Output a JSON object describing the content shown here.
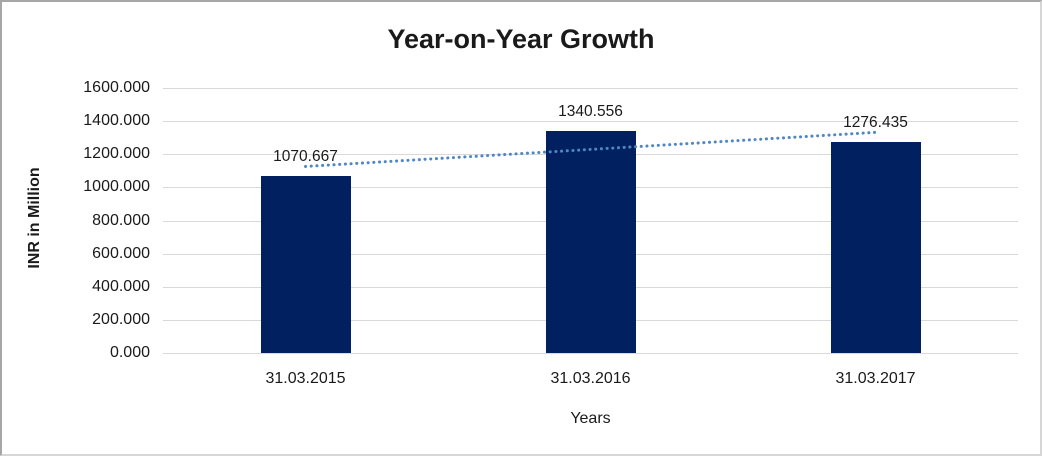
{
  "chart_data": {
    "type": "bar",
    "title": "Year-on-Year Growth",
    "xlabel": "Years",
    "ylabel": "INR in Million",
    "categories": [
      "31.03.2015",
      "31.03.2016",
      "31.03.2017"
    ],
    "values": [
      1070.667,
      1340.556,
      1276.435
    ],
    "value_labels": [
      "1070.667",
      "1340.556",
      "1276.435"
    ],
    "series_name": "",
    "ylim": [
      0,
      1600
    ],
    "ytick_step": 200,
    "ytick_labels": [
      "0.000",
      "200.000",
      "400.000",
      "600.000",
      "800.000",
      "1000.000",
      "1200.000",
      "1400.000",
      "1600.000"
    ],
    "grid": true,
    "legend": "none",
    "bar_color": "#002060",
    "gridline_color": "#d9d9d9",
    "text_color": "#1a1a1a",
    "trendline": {
      "type": "linear",
      "style": "dotted",
      "color": "#4f87c5"
    }
  }
}
